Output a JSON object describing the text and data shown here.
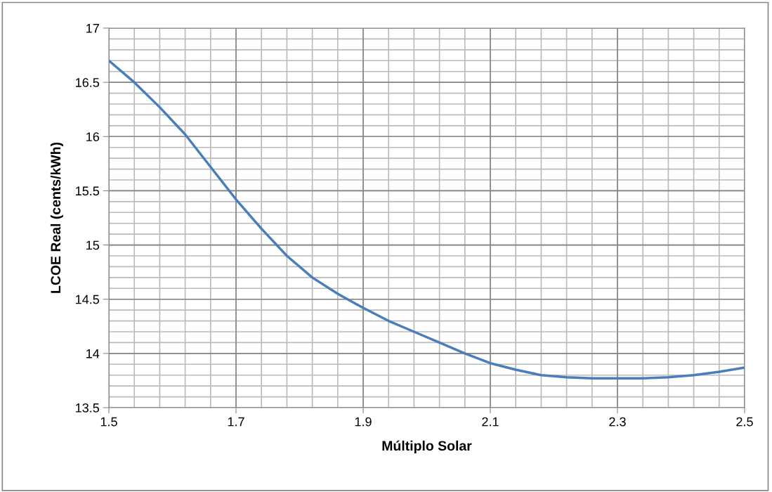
{
  "chart_data": {
    "type": "line",
    "xlabel": "Múltiplo Solar",
    "ylabel": "LCOE Real (cents/kWh)",
    "x": [
      1.5,
      1.54,
      1.58,
      1.62,
      1.66,
      1.7,
      1.74,
      1.78,
      1.82,
      1.86,
      1.9,
      1.94,
      1.98,
      2.02,
      2.06,
      2.1,
      2.14,
      2.18,
      2.22,
      2.26,
      2.3,
      2.34,
      2.38,
      2.42,
      2.46,
      2.5
    ],
    "series": [
      {
        "color": "#4a7ebb",
        "values": [
          16.7,
          16.5,
          16.27,
          16.02,
          15.72,
          15.42,
          15.15,
          14.9,
          14.7,
          14.55,
          14.42,
          14.3,
          14.2,
          14.1,
          14.0,
          13.91,
          13.85,
          13.8,
          13.78,
          13.77,
          13.77,
          13.77,
          13.78,
          13.8,
          13.83,
          13.87
        ]
      }
    ],
    "xlim": [
      1.5,
      2.5
    ],
    "xticks": [
      1.5,
      1.7,
      1.9,
      2.1,
      2.3,
      2.5
    ],
    "ylim": [
      13.5,
      17
    ],
    "yticks": [
      13.5,
      14,
      14.5,
      15,
      15.5,
      16,
      16.5,
      17
    ],
    "grid": true,
    "legend": false,
    "marker": "none",
    "line_style": "solid"
  }
}
